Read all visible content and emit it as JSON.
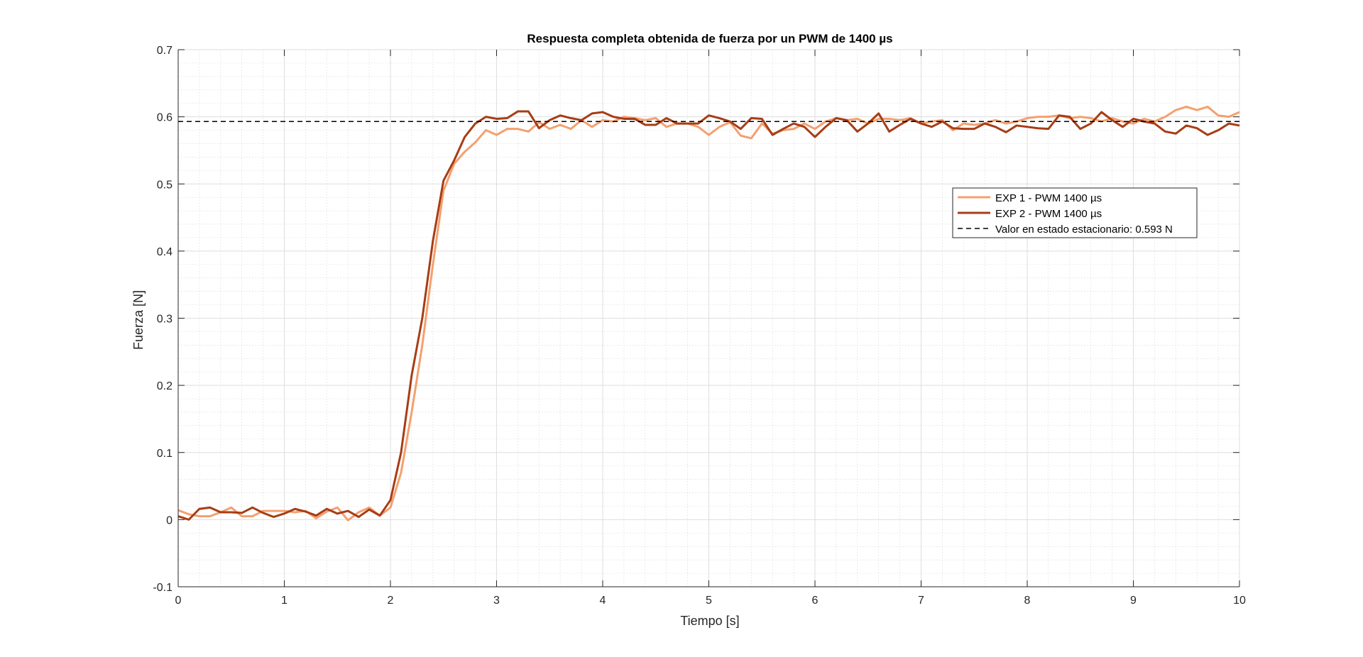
{
  "chart_data": {
    "type": "line",
    "title": "Respuesta completa obtenida de fuerza por un PWM de 1400 µs",
    "xlabel": "Tiempo [s]",
    "ylabel": "Fuerza [N]",
    "xlim": [
      0,
      10
    ],
    "ylim": [
      -0.1,
      0.7
    ],
    "xticks": [
      0,
      1,
      2,
      3,
      4,
      5,
      6,
      7,
      8,
      9,
      10
    ],
    "xtick_labels": [
      "0",
      "1",
      "2",
      "3",
      "4",
      "5",
      "6",
      "7",
      "8",
      "9",
      "10"
    ],
    "yticks": [
      -0.1,
      0,
      0.1,
      0.2,
      0.3,
      0.4,
      0.5,
      0.6,
      0.7
    ],
    "ytick_labels": [
      "-0.1",
      "0",
      "0.1",
      "0.2",
      "0.3",
      "0.4",
      "0.5",
      "0.6",
      "0.7"
    ],
    "grid": true,
    "minor_grid": true,
    "legend_position": "upper right, inside the axes",
    "series": [
      {
        "name": "EXP 1 - PWM 1400 µs",
        "color": "#F4A06E",
        "x": [
          0,
          0.1,
          0.2,
          0.3,
          0.4,
          0.5,
          0.6,
          0.7,
          0.8,
          0.9,
          1,
          1.1,
          1.2,
          1.3,
          1.4,
          1.5,
          1.6,
          1.7,
          1.8,
          1.9,
          2,
          2.1,
          2.2,
          2.3,
          2.4,
          2.5,
          2.6,
          2.7,
          2.8,
          2.9,
          3,
          3.1,
          3.2,
          3.3,
          3.4,
          3.5,
          3.6,
          3.7,
          3.8,
          3.9,
          4,
          4.1,
          4.2,
          4.3,
          4.4,
          4.5,
          4.6,
          4.7,
          4.8,
          4.9,
          5,
          5.1,
          5.2,
          5.3,
          5.4,
          5.5,
          5.6,
          5.7,
          5.8,
          5.9,
          6,
          6.1,
          6.2,
          6.3,
          6.4,
          6.5,
          6.6,
          6.7,
          6.8,
          6.9,
          7,
          7.1,
          7.2,
          7.3,
          7.4,
          7.5,
          7.6,
          7.7,
          7.8,
          7.9,
          8,
          8.1,
          8.2,
          8.3,
          8.4,
          8.5,
          8.6,
          8.7,
          8.8,
          8.9,
          9,
          9.1,
          9.2,
          9.3,
          9.4,
          9.5,
          9.6,
          9.7,
          9.8,
          9.9,
          10
        ],
        "y": [
          0.014,
          0.008,
          0.005,
          0.005,
          0.011,
          0.018,
          0.005,
          0.005,
          0.013,
          0.013,
          0.013,
          0.011,
          0.013,
          0.002,
          0.012,
          0.018,
          -0.001,
          0.011,
          0.018,
          0.006,
          0.018,
          0.07,
          0.16,
          0.26,
          0.38,
          0.49,
          0.53,
          0.548,
          0.562,
          0.58,
          0.573,
          0.582,
          0.582,
          0.578,
          0.592,
          0.582,
          0.588,
          0.582,
          0.595,
          0.585,
          0.595,
          0.593,
          0.6,
          0.598,
          0.595,
          0.598,
          0.585,
          0.59,
          0.59,
          0.585,
          0.573,
          0.585,
          0.592,
          0.572,
          0.568,
          0.59,
          0.575,
          0.58,
          0.582,
          0.59,
          0.582,
          0.593,
          0.598,
          0.595,
          0.597,
          0.59,
          0.597,
          0.597,
          0.595,
          0.598,
          0.59,
          0.593,
          0.595,
          0.58,
          0.59,
          0.588,
          0.59,
          0.595,
          0.59,
          0.593,
          0.598,
          0.6,
          0.6,
          0.602,
          0.598,
          0.6,
          0.598,
          0.593,
          0.598,
          0.593,
          0.59,
          0.597,
          0.593,
          0.6,
          0.61,
          0.615,
          0.61,
          0.615,
          0.602,
          0.6,
          0.607
        ]
      },
      {
        "name": "EXP 2 - PWM 1400 µs",
        "color": "#A73D15",
        "x": [
          0,
          0.1,
          0.2,
          0.3,
          0.4,
          0.5,
          0.6,
          0.7,
          0.8,
          0.9,
          1,
          1.1,
          1.2,
          1.3,
          1.4,
          1.5,
          1.6,
          1.7,
          1.8,
          1.9,
          2,
          2.1,
          2.2,
          2.3,
          2.4,
          2.5,
          2.6,
          2.7,
          2.8,
          2.9,
          3,
          3.1,
          3.2,
          3.3,
          3.4,
          3.5,
          3.6,
          3.7,
          3.8,
          3.9,
          4,
          4.1,
          4.2,
          4.3,
          4.4,
          4.5,
          4.6,
          4.7,
          4.8,
          4.9,
          5,
          5.1,
          5.2,
          5.3,
          5.4,
          5.5,
          5.6,
          5.7,
          5.8,
          5.9,
          6,
          6.1,
          6.2,
          6.3,
          6.4,
          6.5,
          6.6,
          6.7,
          6.8,
          6.9,
          7,
          7.1,
          7.2,
          7.3,
          7.4,
          7.5,
          7.6,
          7.7,
          7.8,
          7.9,
          8,
          8.1,
          8.2,
          8.3,
          8.4,
          8.5,
          8.6,
          8.7,
          8.8,
          8.9,
          9,
          9.1,
          9.2,
          9.3,
          9.4,
          9.5,
          9.6,
          9.7,
          9.8,
          9.9,
          10
        ],
        "y": [
          0.005,
          0.0,
          0.016,
          0.018,
          0.011,
          0.011,
          0.01,
          0.018,
          0.01,
          0.004,
          0.009,
          0.016,
          0.012,
          0.006,
          0.016,
          0.009,
          0.013,
          0.004,
          0.015,
          0.006,
          0.029,
          0.1,
          0.215,
          0.3,
          0.415,
          0.505,
          0.535,
          0.57,
          0.59,
          0.6,
          0.597,
          0.598,
          0.608,
          0.608,
          0.583,
          0.595,
          0.602,
          0.598,
          0.595,
          0.605,
          0.607,
          0.6,
          0.597,
          0.597,
          0.588,
          0.588,
          0.598,
          0.59,
          0.59,
          0.59,
          0.602,
          0.598,
          0.593,
          0.582,
          0.598,
          0.597,
          0.573,
          0.582,
          0.59,
          0.585,
          0.57,
          0.585,
          0.598,
          0.595,
          0.578,
          0.59,
          0.605,
          0.578,
          0.588,
          0.597,
          0.59,
          0.585,
          0.593,
          0.583,
          0.582,
          0.582,
          0.59,
          0.585,
          0.577,
          0.587,
          0.585,
          0.583,
          0.582,
          0.602,
          0.6,
          0.582,
          0.59,
          0.607,
          0.595,
          0.585,
          0.597,
          0.593,
          0.59,
          0.578,
          0.575,
          0.587,
          0.583,
          0.573,
          0.58,
          0.59,
          0.587
        ]
      },
      {
        "name": "Valor en estado estacionario: 0.593 N",
        "color": "#000000",
        "style": "dashed",
        "x": [
          0,
          10
        ],
        "y": [
          0.593,
          0.593
        ]
      }
    ]
  }
}
